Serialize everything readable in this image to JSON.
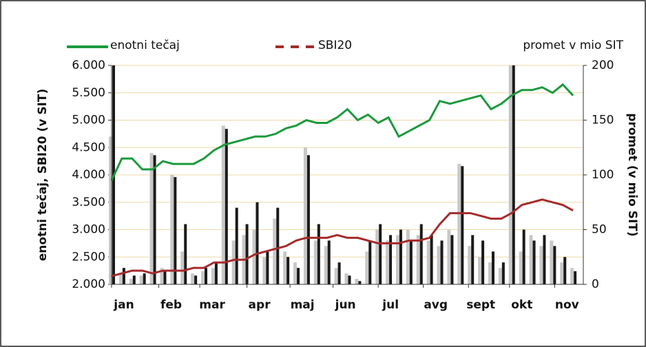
{
  "chart_data": {
    "type": "line",
    "x": [
      0,
      5,
      10,
      15,
      20,
      25,
      30,
      35,
      40,
      45,
      50,
      55,
      60,
      65,
      70,
      75,
      80,
      85,
      90,
      95,
      100,
      105,
      110,
      115,
      120,
      125,
      130,
      135,
      140,
      145,
      150,
      155,
      160,
      165,
      170,
      175,
      180,
      185,
      190,
      195,
      200,
      205,
      210,
      215,
      220,
      225
    ],
    "xlim": [
      0,
      230
    ],
    "xticks": [
      {
        "value": 0,
        "label": "jan"
      },
      {
        "value": 23,
        "label": "feb"
      },
      {
        "value": 43,
        "label": "mar"
      },
      {
        "value": 66,
        "label": "apr"
      },
      {
        "value": 87,
        "label": "maj"
      },
      {
        "value": 108,
        "label": "jun"
      },
      {
        "value": 130,
        "label": "jul"
      },
      {
        "value": 152,
        "label": "avg"
      },
      {
        "value": 174,
        "label": "sept"
      },
      {
        "value": 194,
        "label": "okt"
      },
      {
        "value": 216,
        "label": "nov"
      }
    ],
    "ylabel": "enotni tečaj, SBI20  (v SIT)",
    "y2label": "promet (v mio SIT)",
    "ylim": [
      2000,
      6000
    ],
    "yticks": [
      {
        "value": 2000,
        "label": "2.000"
      },
      {
        "value": 2500,
        "label": "2.500"
      },
      {
        "value": 3000,
        "label": "3.000"
      },
      {
        "value": 3500,
        "label": "3.500"
      },
      {
        "value": 4000,
        "label": "4.000"
      },
      {
        "value": 4500,
        "label": "4.500"
      },
      {
        "value": 5000,
        "label": "5.000"
      },
      {
        "value": 5500,
        "label": "5.500"
      },
      {
        "value": 6000,
        "label": "6.000"
      }
    ],
    "y2lim": [
      0,
      200
    ],
    "y2ticks": [
      0,
      50,
      100,
      150,
      200
    ],
    "grid": true,
    "series": [
      {
        "name": "enotni tečaj",
        "type": "line",
        "color": "#1a9a3c",
        "values": [
          3900,
          4300,
          4300,
          4100,
          4100,
          4250,
          4200,
          4200,
          4200,
          4300,
          4450,
          4550,
          4600,
          4650,
          4700,
          4700,
          4750,
          4850,
          4900,
          5000,
          4950,
          4950,
          5050,
          5200,
          5000,
          5100,
          4950,
          5050,
          4700,
          4800,
          4900,
          5000,
          5350,
          5300,
          5350,
          5400,
          5450,
          5200,
          5300,
          5450,
          5550,
          5550,
          5600,
          5500,
          5650,
          5450
        ]
      },
      {
        "name": "SBI20",
        "type": "line",
        "dashed": true,
        "color": "#a52a2a",
        "values": [
          2150,
          2200,
          2250,
          2250,
          2200,
          2250,
          2250,
          2250,
          2300,
          2300,
          2400,
          2400,
          2450,
          2450,
          2550,
          2600,
          2650,
          2700,
          2800,
          2850,
          2850,
          2850,
          2900,
          2850,
          2850,
          2800,
          2750,
          2750,
          2750,
          2800,
          2800,
          2850,
          3100,
          3300,
          3300,
          3300,
          3250,
          3200,
          3200,
          3300,
          3450,
          3500,
          3550,
          3500,
          3450,
          3350
        ]
      },
      {
        "name": "promet v mio SIT",
        "type": "bar",
        "axis": "y2",
        "color": "#c8c8c8",
        "values": [
          135,
          10,
          5,
          8,
          120,
          15,
          100,
          30,
          10,
          12,
          15,
          145,
          40,
          45,
          50,
          25,
          60,
          30,
          20,
          125,
          40,
          35,
          15,
          10,
          5,
          30,
          50,
          40,
          45,
          50,
          45,
          40,
          35,
          50,
          110,
          35,
          25,
          20,
          15,
          200,
          30,
          45,
          35,
          40,
          20,
          15
        ]
      },
      {
        "type": "bar",
        "axis": "y2",
        "color": "#1a1a1a",
        "values": [
          200,
          15,
          8,
          10,
          118,
          12,
          98,
          55,
          8,
          15,
          20,
          142,
          70,
          55,
          75,
          30,
          70,
          25,
          15,
          118,
          55,
          40,
          20,
          8,
          3,
          40,
          55,
          45,
          50,
          40,
          55,
          45,
          40,
          45,
          108,
          45,
          40,
          30,
          20,
          200,
          50,
          40,
          45,
          35,
          25,
          12
        ]
      }
    ]
  }
}
